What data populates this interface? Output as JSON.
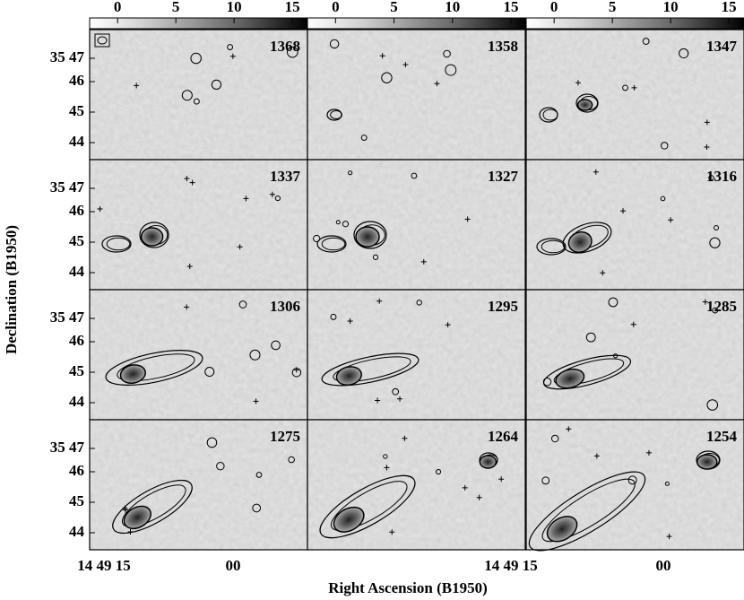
{
  "colorbars": [
    {
      "ticks": [
        0,
        5,
        10,
        15
      ]
    },
    {
      "ticks": [
        0,
        5,
        10,
        15
      ]
    },
    {
      "ticks": [
        0,
        5,
        10,
        15
      ]
    }
  ],
  "panels": [
    {
      "label": "1368"
    },
    {
      "label": "1358"
    },
    {
      "label": "1347"
    },
    {
      "label": "1337"
    },
    {
      "label": "1327"
    },
    {
      "label": "1316"
    },
    {
      "label": "1306"
    },
    {
      "label": "1295"
    },
    {
      "label": "1285"
    },
    {
      "label": "1275"
    },
    {
      "label": "1264"
    },
    {
      "label": "1254"
    }
  ],
  "y_axis": {
    "title": "Declination (B1950)",
    "rows": [
      {
        "ticks": [
          "35 47",
          "46",
          "45",
          "44"
        ]
      },
      {
        "ticks": [
          "35 47",
          "46",
          "45",
          "44"
        ]
      },
      {
        "ticks": [
          "35 47",
          "46",
          "45",
          "44"
        ]
      },
      {
        "ticks": [
          "35 47",
          "46",
          "45",
          "44"
        ]
      }
    ]
  },
  "x_axis": {
    "title": "Right Ascension (B1950)",
    "ticks": [
      "14 49 15",
      "00",
      "14 49 15",
      "00"
    ]
  }
}
